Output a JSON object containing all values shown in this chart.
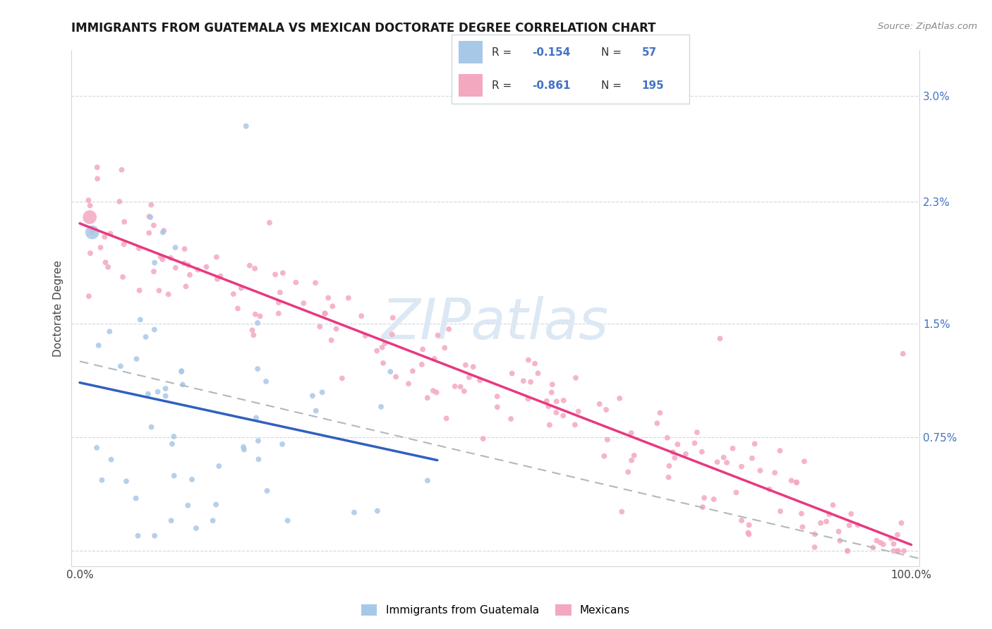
{
  "title": "IMMIGRANTS FROM GUATEMALA VS MEXICAN DOCTORATE DEGREE CORRELATION CHART",
  "source": "Source: ZipAtlas.com",
  "ylabel": "Doctorate Degree",
  "legend_label1": "Immigrants from Guatemala",
  "legend_label2": "Mexicans",
  "color_blue": "#a8c8e8",
  "color_pink": "#f4a8c0",
  "color_blue_line": "#3060c0",
  "color_pink_line": "#e83880",
  "color_dashed": "#b0b8c0",
  "axis_color": "#4472c4",
  "watermark_color": "#dce8f4",
  "title_fontsize": 12,
  "source_fontsize": 10,
  "right_ytick_vals": [
    0.0,
    0.0075,
    0.015,
    0.023,
    0.03
  ],
  "right_ytick_labels": [
    "",
    "0.75%",
    "1.5%",
    "2.3%",
    "3.0%"
  ],
  "xlim": [
    -0.01,
    1.01
  ],
  "ylim": [
    -0.001,
    0.033
  ]
}
